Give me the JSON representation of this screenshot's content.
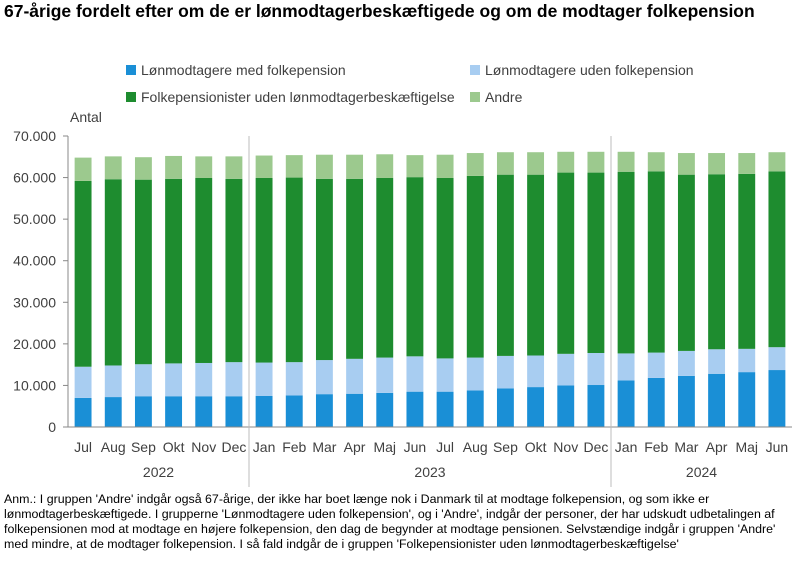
{
  "title": "67-årige fordelt efter om de er lønmodtagerbeskæftigede og om de modtager folkepension",
  "note": "Anm.: I gruppen 'Andre' indgår også 67-årige, der ikke har boet længe nok i Danmark til at modtage folkepension, og som ikke er lønmodtagerbeskæftigede. I grupperne 'Lønmodtagere uden folkepension', og i 'Andre', indgår der personer, der har udskudt udbetalingen af folkepensionen mod at modtage en højere folkepension, den dag de begynder at modtage pensionen. Selvstændige indgår i gruppen 'Andre' med mindre, at de modtager folkepension. I så fald indgår de i gruppen 'Folkepensionister uden lønmodtagerbeskæftigelse'",
  "chart_data": {
    "type": "bar",
    "stacked": true,
    "ylabel": "Antal",
    "ylim": [
      0,
      70000
    ],
    "yticks": [
      "0",
      "10.000",
      "20.000",
      "30.000",
      "40.000",
      "50.000",
      "60.000",
      "70.000"
    ],
    "grid": false,
    "legend_position": "top",
    "categories": [
      "Jul",
      "Aug",
      "Sep",
      "Okt",
      "Nov",
      "Dec",
      "Jan",
      "Feb",
      "Mar",
      "Apr",
      "Maj",
      "Jun",
      "Jul",
      "Aug",
      "Sep",
      "Okt",
      "Nov",
      "Dec",
      "Jan",
      "Feb",
      "Mar",
      "Apr",
      "Maj",
      "Jun"
    ],
    "years": [
      {
        "label": "2022",
        "start": 0,
        "end": 5
      },
      {
        "label": "2023",
        "start": 6,
        "end": 17
      },
      {
        "label": "2024",
        "start": 18,
        "end": 23
      }
    ],
    "series": [
      {
        "name": "Lønmodtagere med folkepension",
        "color": "#1a8fd6",
        "values": [
          7000,
          7200,
          7400,
          7400,
          7400,
          7400,
          7500,
          7600,
          7900,
          8000,
          8200,
          8500,
          8500,
          8800,
          9300,
          9600,
          10000,
          10100,
          11200,
          11800,
          12300,
          12800,
          13200,
          13700
        ]
      },
      {
        "name": "Lønmodtagere uden folkepension",
        "color": "#a8cdf1",
        "values": [
          7500,
          7600,
          7700,
          7900,
          8000,
          8200,
          8000,
          8000,
          8200,
          8400,
          8500,
          8500,
          8000,
          7900,
          7800,
          7600,
          7600,
          7700,
          6500,
          6100,
          6000,
          5900,
          5600,
          5500
        ]
      },
      {
        "name": "Folkepensionister uden lønmodtagerbeskæftigelse",
        "color": "#1e8c2f",
        "values": [
          44700,
          44800,
          44400,
          44400,
          44500,
          44100,
          44400,
          44400,
          43600,
          43300,
          43200,
          43100,
          43400,
          43700,
          43600,
          43500,
          43600,
          43400,
          43700,
          43600,
          42400,
          42100,
          42100,
          42300
        ]
      },
      {
        "name": "Andre",
        "color": "#9cc98e",
        "values": [
          5600,
          5500,
          5400,
          5500,
          5200,
          5400,
          5400,
          5400,
          5800,
          5800,
          5700,
          5300,
          5600,
          5500,
          5400,
          5400,
          5000,
          5000,
          4800,
          4600,
          5200,
          5100,
          5000,
          4600
        ]
      }
    ]
  }
}
